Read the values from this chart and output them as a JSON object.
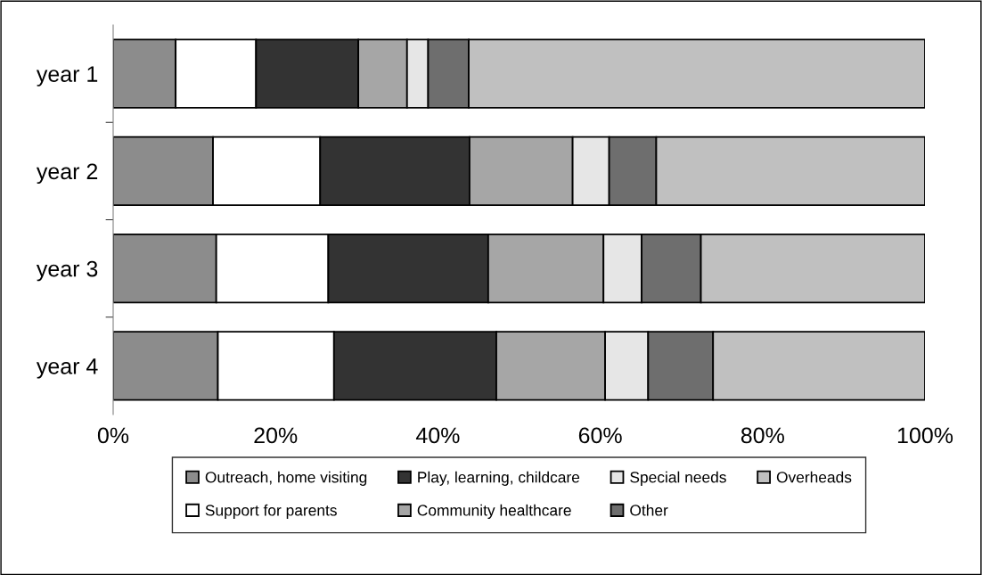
{
  "chart_data": {
    "type": "bar",
    "orientation": "horizontal",
    "stacked": true,
    "categories": [
      "year 1",
      "year 2",
      "year 3",
      "year 4"
    ],
    "series": [
      {
        "name": "Outreach, home visiting",
        "color": "#8c8c8c",
        "values": [
          7.7,
          12.3,
          12.7,
          12.9
        ]
      },
      {
        "name": "Support for parents",
        "color": "#ffffff",
        "values": [
          9.9,
          13.2,
          13.8,
          14.3
        ]
      },
      {
        "name": "Play, learning, childcare",
        "color": "#333333",
        "values": [
          12.6,
          18.4,
          19.7,
          20.0
        ]
      },
      {
        "name": "Community healthcare",
        "color": "#a6a6a6",
        "values": [
          6.0,
          12.7,
          14.2,
          13.4
        ]
      },
      {
        "name": "Special needs",
        "color": "#e6e6e6",
        "values": [
          2.6,
          4.5,
          4.7,
          5.3
        ]
      },
      {
        "name": "Other",
        "color": "#6e6e6e",
        "values": [
          5.0,
          5.8,
          7.3,
          8.0
        ]
      },
      {
        "name": "Overheads",
        "color": "#c0c0c0",
        "values": [
          56.2,
          33.1,
          27.6,
          26.1
        ]
      }
    ],
    "xlim": [
      0,
      100
    ],
    "xticks": [
      {
        "value": 0,
        "label": "0%"
      },
      {
        "value": 20,
        "label": "20%"
      },
      {
        "value": 40,
        "label": "40%"
      },
      {
        "value": 60,
        "label": "60%"
      },
      {
        "value": 80,
        "label": "80%"
      },
      {
        "value": 100,
        "label": "100%"
      }
    ],
    "grid": false,
    "legend": "bottom"
  }
}
